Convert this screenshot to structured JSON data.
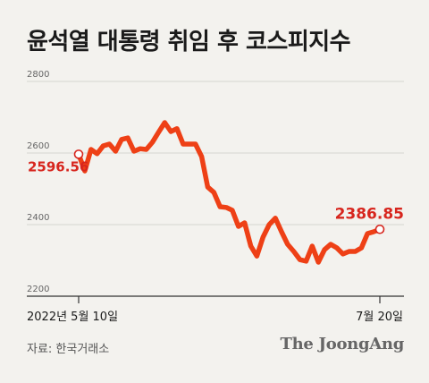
{
  "title": "윤석열 대통령 취임 후 코스피지수",
  "source": "자료: 한국거래소",
  "brand": "The JoongAng",
  "colors": {
    "line": "#ee4016",
    "label": "#d7261e",
    "grid": "#d6d5d0",
    "axis": "#333333",
    "background": "#f3f2ee"
  },
  "chart_data": {
    "type": "line",
    "title": "윤석열 대통령 취임 후 코스피지수",
    "ylim": [
      2200,
      2800
    ],
    "yticks": [
      "2800",
      "2600",
      "2400",
      "2200"
    ],
    "x_tick_labels": [
      "2022년 5월 10일",
      "7월 20일"
    ],
    "x_range": [
      "2022-05-10",
      "2022-07-20"
    ],
    "start_label": "2596.56",
    "end_label": "2386.85",
    "series": [
      {
        "values": [
          2596.56,
          2550,
          2610,
          2598,
          2620,
          2625,
          2605,
          2638,
          2642,
          2605,
          2612,
          2610,
          2630,
          2658,
          2685,
          2660,
          2668,
          2625,
          2625,
          2625,
          2590,
          2505,
          2490,
          2450,
          2448,
          2440,
          2395,
          2405,
          2340,
          2312,
          2365,
          2400,
          2418,
          2380,
          2345,
          2325,
          2302,
          2298,
          2340,
          2295,
          2330,
          2345,
          2335,
          2318,
          2325,
          2325,
          2335,
          2375,
          2380,
          2386.85
        ]
      }
    ],
    "grid": "horizontal",
    "legend": "none"
  }
}
